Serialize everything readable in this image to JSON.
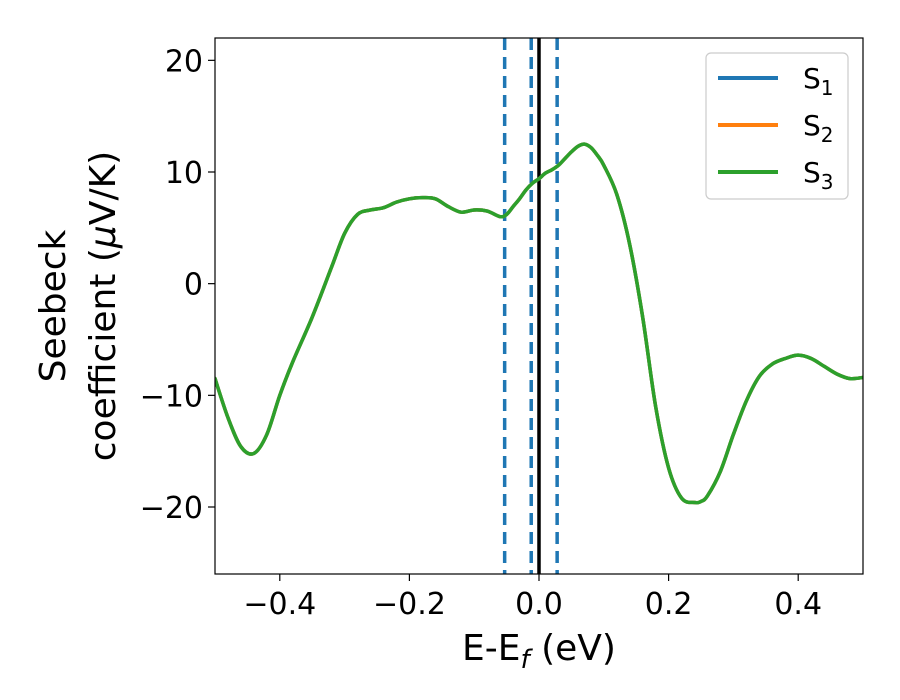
{
  "chart_data": {
    "type": "line",
    "xlabel": "E-E_f (eV)",
    "ylabel_line1": "Seebeck",
    "ylabel_line2": "coefficient  (μV/K)",
    "xlim": [
      -0.5,
      0.5
    ],
    "ylim": [
      -26,
      22
    ],
    "x_ticks": [
      -0.4,
      -0.2,
      0.0,
      0.2,
      0.4
    ],
    "x_tick_labels": [
      "−0.4",
      "−0.2",
      "0.0",
      "0.2",
      "0.4"
    ],
    "y_ticks": [
      20,
      10,
      0,
      -10,
      -20
    ],
    "y_tick_labels": [
      "20",
      "10",
      "0",
      "−10",
      "−20"
    ],
    "grid": false,
    "legend_placement": "top-right",
    "vertical_lines": [
      {
        "x": -0.053,
        "style": "dashed",
        "color": "#1f77b4"
      },
      {
        "x": -0.012,
        "style": "dashed",
        "color": "#1f77b4"
      },
      {
        "x": 0.028,
        "style": "dashed",
        "color": "#1f77b4"
      },
      {
        "x": 0.0,
        "style": "solid",
        "color": "#000000"
      }
    ],
    "x": [
      -0.5,
      -0.48,
      -0.46,
      -0.44,
      -0.42,
      -0.4,
      -0.38,
      -0.35,
      -0.32,
      -0.3,
      -0.28,
      -0.26,
      -0.24,
      -0.22,
      -0.2,
      -0.18,
      -0.16,
      -0.14,
      -0.12,
      -0.1,
      -0.08,
      -0.06,
      -0.05,
      -0.04,
      -0.03,
      -0.02,
      -0.01,
      0.0,
      0.01,
      0.02,
      0.03,
      0.04,
      0.05,
      0.06,
      0.07,
      0.08,
      0.09,
      0.1,
      0.12,
      0.14,
      0.16,
      0.18,
      0.2,
      0.22,
      0.24,
      0.25,
      0.26,
      0.28,
      0.3,
      0.32,
      0.34,
      0.36,
      0.38,
      0.4,
      0.42,
      0.44,
      0.46,
      0.48,
      0.5
    ],
    "series": [
      {
        "name": "S_1",
        "color": "#1f77b4",
        "legend_sub": "1",
        "values": [
          -8.5,
          -12,
          -14.6,
          -15.2,
          -13.5,
          -10,
          -7,
          -3,
          1.5,
          4.5,
          6.2,
          6.6,
          6.8,
          7.3,
          7.6,
          7.7,
          7.6,
          6.9,
          6.4,
          6.6,
          6.5,
          6.0,
          6.2,
          6.9,
          7.6,
          8.4,
          9.0,
          9.4,
          9.9,
          10.2,
          10.6,
          11.2,
          11.8,
          12.3,
          12.5,
          12.2,
          11.5,
          10.6,
          8.0,
          3.5,
          -3.0,
          -11.0,
          -16.5,
          -19.2,
          -19.6,
          -19.5,
          -19.0,
          -16.8,
          -13.5,
          -10.5,
          -8.3,
          -7.2,
          -6.7,
          -6.4,
          -6.7,
          -7.4,
          -8.1,
          -8.5,
          -8.4
        ]
      },
      {
        "name": "S_2",
        "color": "#ff7f0e",
        "legend_sub": "2",
        "values": [
          -8.5,
          -12,
          -14.6,
          -15.2,
          -13.5,
          -10,
          -7,
          -3,
          1.5,
          4.5,
          6.2,
          6.6,
          6.8,
          7.3,
          7.6,
          7.7,
          7.6,
          6.9,
          6.4,
          6.6,
          6.5,
          6.0,
          6.2,
          6.9,
          7.6,
          8.4,
          9.0,
          9.4,
          9.9,
          10.2,
          10.6,
          11.2,
          11.8,
          12.3,
          12.5,
          12.2,
          11.5,
          10.6,
          8.0,
          3.5,
          -3.0,
          -11.0,
          -16.5,
          -19.2,
          -19.6,
          -19.5,
          -19.0,
          -16.8,
          -13.5,
          -10.5,
          -8.3,
          -7.2,
          -6.7,
          -6.4,
          -6.7,
          -7.4,
          -8.1,
          -8.5,
          -8.4
        ]
      },
      {
        "name": "S_3",
        "color": "#2ca02c",
        "legend_sub": "3",
        "values": [
          -8.5,
          -12,
          -14.6,
          -15.2,
          -13.5,
          -10,
          -7,
          -3,
          1.5,
          4.5,
          6.2,
          6.6,
          6.8,
          7.3,
          7.6,
          7.7,
          7.6,
          6.9,
          6.4,
          6.6,
          6.5,
          6.0,
          6.2,
          6.9,
          7.6,
          8.4,
          9.0,
          9.4,
          9.9,
          10.2,
          10.6,
          11.2,
          11.8,
          12.3,
          12.5,
          12.2,
          11.5,
          10.6,
          8.0,
          3.5,
          -3.0,
          -11.0,
          -16.5,
          -19.2,
          -19.6,
          -19.5,
          -19.0,
          -16.8,
          -13.5,
          -10.5,
          -8.3,
          -7.2,
          -6.7,
          -6.4,
          -6.7,
          -7.4,
          -8.1,
          -8.5,
          -8.4
        ]
      }
    ],
    "legend_prefix": "S"
  }
}
